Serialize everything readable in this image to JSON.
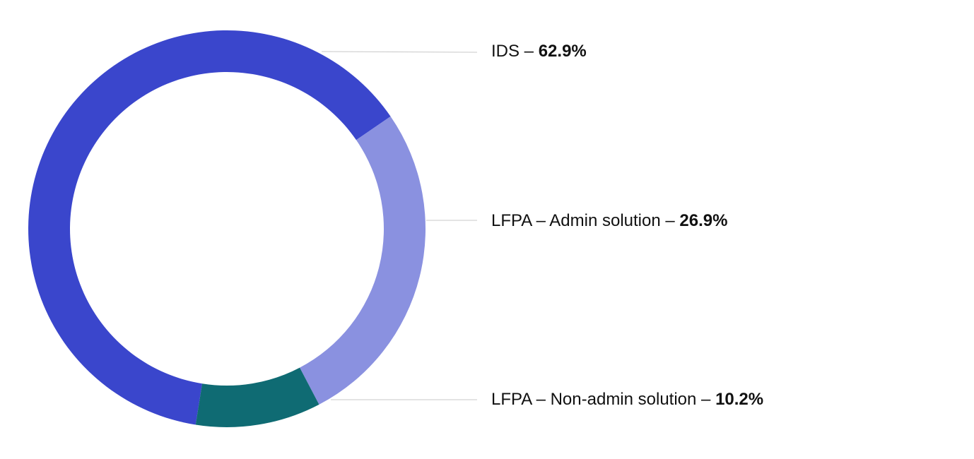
{
  "chart_data": {
    "type": "pie",
    "variant": "donut",
    "title": "",
    "legend_placement": "right",
    "series": [
      {
        "slices": [
          {
            "label": "IDS",
            "value": 62.9,
            "value_text": "62.9%",
            "color": "#3A46CC"
          },
          {
            "label": "LFPA – Admin solution",
            "value": 26.9,
            "value_text": "26.9%",
            "color": "#8A91E0"
          },
          {
            "label": "LFPA – Non-admin solution",
            "value": 10.2,
            "value_text": "10.2%",
            "color": "#0F6B73"
          }
        ]
      }
    ]
  },
  "colors": {
    "leader_line": "#C8C8C8",
    "text": "#111111",
    "background": "#FFFFFF"
  }
}
